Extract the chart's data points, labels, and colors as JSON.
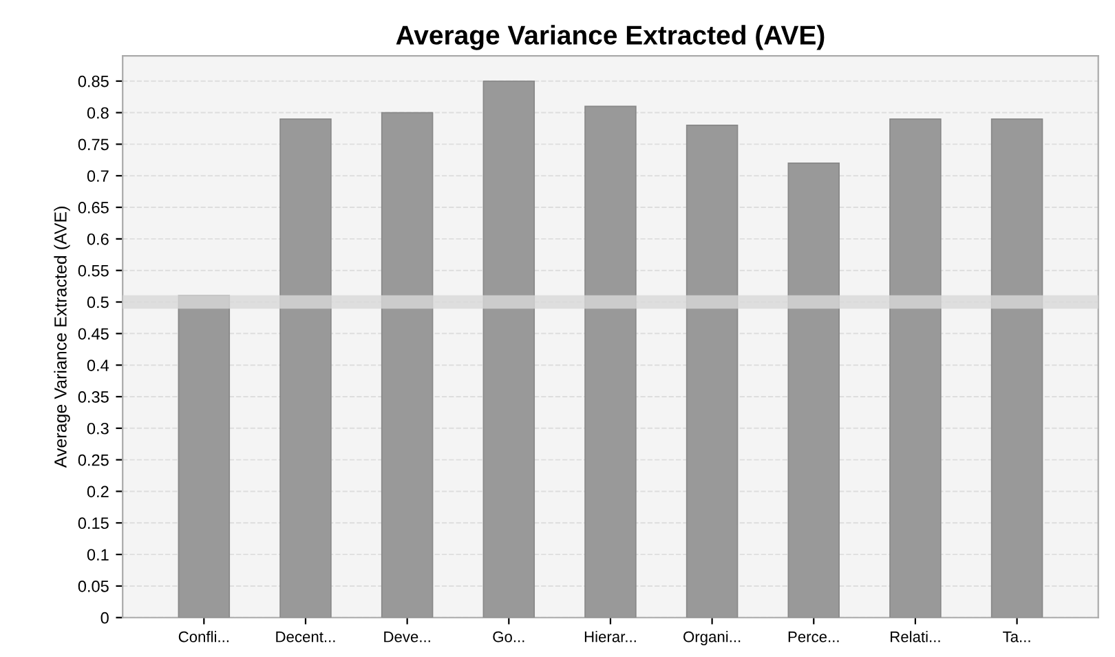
{
  "chart_data": {
    "type": "bar",
    "title": "Average Variance Extracted (AVE)",
    "ylabel": "Average Variance Extracted (AVE)",
    "categories": [
      "Confli...",
      "Decent...",
      "Deve...",
      "Go...",
      "Hierar...",
      "Organi...",
      "Perce...",
      "Relati...",
      "Ta..."
    ],
    "values": [
      0.51,
      0.79,
      0.8,
      0.85,
      0.81,
      0.78,
      0.72,
      0.79,
      0.79
    ],
    "color": "#999999",
    "ylim": [
      0,
      0.89
    ],
    "yticks": [
      0,
      0.05,
      0.1,
      0.15,
      0.2,
      0.25,
      0.3,
      0.35,
      0.4,
      0.45,
      0.5,
      0.55,
      0.6,
      0.65,
      0.7,
      0.75,
      0.8,
      0.85
    ],
    "ref_lines": [
      {
        "axis": "y",
        "value": 0.5,
        "color": "#d8d8d8"
      }
    ],
    "grid": "y"
  }
}
